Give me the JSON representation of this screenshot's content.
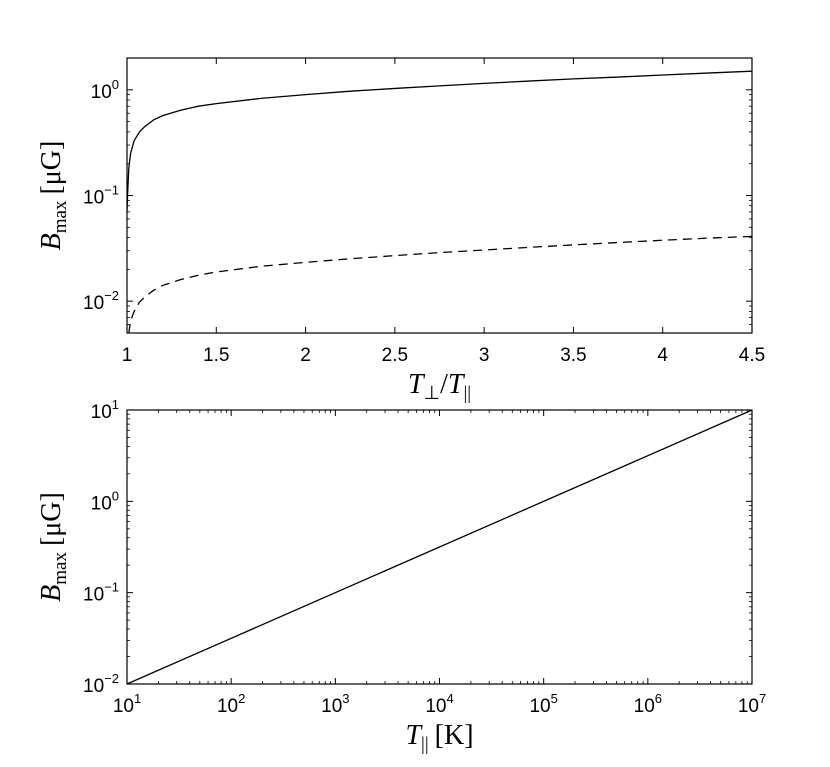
{
  "chart_data": [
    {
      "type": "line",
      "xlabel": "T⊥/T||",
      "xlabel_parts": {
        "main": "T",
        "sub1": "⊥",
        "slash": "/",
        "main2": "T",
        "sub2": "||"
      },
      "ylabel_parts": {
        "main": "B",
        "sub": "max",
        "unit": "[μG]"
      },
      "xscale": "linear",
      "yscale": "log",
      "xlim": [
        1,
        4.5
      ],
      "ylim": [
        0.005,
        2
      ],
      "xticks": [
        1,
        1.5,
        2,
        2.5,
        3,
        3.5,
        4,
        4.5
      ],
      "xtick_labels": [
        "1",
        "1.5",
        "2",
        "2.5",
        "3",
        "3.5",
        "4",
        "4.5"
      ],
      "yticks": [
        {
          "value": 0.01,
          "base": "10",
          "exp": "−2"
        },
        {
          "value": 0.1,
          "base": "10",
          "exp": "−1"
        },
        {
          "value": 1,
          "base": "10",
          "exp": "0"
        }
      ],
      "series": [
        {
          "style": "solid",
          "color": "#000000",
          "x": [
            1.0,
            1.003,
            1.01,
            1.02,
            1.04,
            1.07,
            1.1,
            1.15,
            1.2,
            1.3,
            1.4,
            1.5,
            1.75,
            2.0,
            2.25,
            2.5,
            2.75,
            3.0,
            3.25,
            3.5,
            3.75,
            4.0,
            4.25,
            4.5
          ],
          "y": [
            0.07,
            0.1,
            0.18,
            0.25,
            0.33,
            0.4,
            0.45,
            0.52,
            0.57,
            0.64,
            0.7,
            0.74,
            0.83,
            0.9,
            0.97,
            1.03,
            1.09,
            1.15,
            1.21,
            1.27,
            1.32,
            1.38,
            1.44,
            1.5
          ]
        },
        {
          "style": "dashed",
          "color": "#000000",
          "x": [
            1.01,
            1.02,
            1.04,
            1.07,
            1.1,
            1.15,
            1.2,
            1.3,
            1.4,
            1.5,
            1.75,
            2.0,
            2.25,
            2.5,
            2.75,
            3.0,
            3.25,
            3.5,
            3.75,
            4.0,
            4.25,
            4.5
          ],
          "y": [
            0.005,
            0.0065,
            0.008,
            0.0098,
            0.011,
            0.0127,
            0.0141,
            0.016,
            0.0176,
            0.0189,
            0.0214,
            0.0233,
            0.0252,
            0.027,
            0.0288,
            0.0305,
            0.0323,
            0.0341,
            0.0359,
            0.0377,
            0.0395,
            0.041
          ]
        }
      ]
    },
    {
      "type": "line",
      "xlabel": "T|| [K]",
      "xlabel_parts": {
        "main": "T",
        "sub": "||",
        "unit": "[K]"
      },
      "ylabel_parts": {
        "main": "B",
        "sub": "max",
        "unit": "[μG]"
      },
      "xscale": "log",
      "yscale": "log",
      "xlim": [
        10,
        10000000
      ],
      "ylim": [
        0.01,
        10
      ],
      "xticks": [
        {
          "value": 10,
          "base": "10",
          "exp": "1"
        },
        {
          "value": 100,
          "base": "10",
          "exp": "2"
        },
        {
          "value": 1000,
          "base": "10",
          "exp": "3"
        },
        {
          "value": 10000,
          "base": "10",
          "exp": "4"
        },
        {
          "value": 100000,
          "base": "10",
          "exp": "5"
        },
        {
          "value": 1000000,
          "base": "10",
          "exp": "6"
        },
        {
          "value": 10000000,
          "base": "10",
          "exp": "7"
        }
      ],
      "yticks": [
        {
          "value": 0.01,
          "base": "10",
          "exp": "−2"
        },
        {
          "value": 0.1,
          "base": "10",
          "exp": "−1"
        },
        {
          "value": 1,
          "base": "10",
          "exp": "0"
        },
        {
          "value": 10,
          "base": "10",
          "exp": "1"
        }
      ],
      "series": [
        {
          "style": "solid",
          "color": "#000000",
          "x": [
            10,
            10000000
          ],
          "y": [
            0.01,
            10
          ]
        }
      ]
    }
  ]
}
